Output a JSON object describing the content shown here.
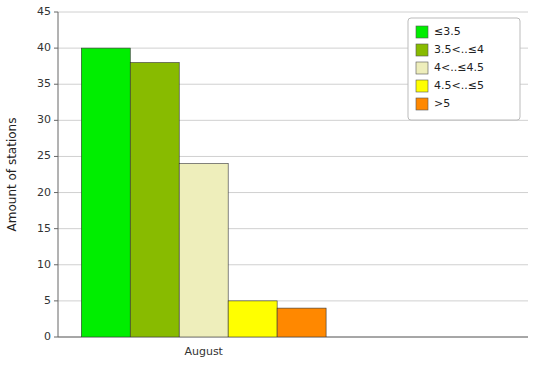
{
  "chart_data": {
    "type": "bar",
    "categories": [
      "August"
    ],
    "series": [
      {
        "name": "≤3.5",
        "color": "#00ee00",
        "values": [
          40
        ]
      },
      {
        "name": "3.5<..≤4",
        "color": "#88bb00",
        "values": [
          38
        ]
      },
      {
        "name": "4<..≤4.5",
        "color": "#eeeebb",
        "values": [
          24
        ]
      },
      {
        "name": "4.5<..≤5",
        "color": "#ffff00",
        "values": [
          5
        ]
      },
      {
        "name": ">5",
        "color": "#ff8800",
        "values": [
          4
        ]
      }
    ],
    "ylabel": "Amount of stations",
    "ylim": [
      0,
      45
    ],
    "yticks": [
      0,
      5,
      10,
      15,
      20,
      25,
      30,
      35,
      40,
      45
    ],
    "grid": true,
    "legend": "upper right"
  }
}
